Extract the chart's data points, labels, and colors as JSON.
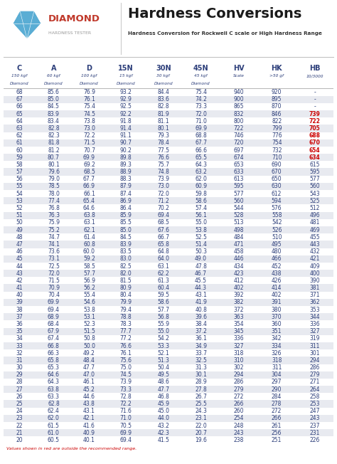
{
  "title": "Hardness Conversions",
  "subtitle": "Hardness Conversion for Rockwell C scale or High Hardness Range",
  "columns": [
    "C",
    "A",
    "D",
    "15N",
    "30N",
    "45N",
    "HV",
    "HK",
    "HB"
  ],
  "col_sub1": [
    "150 kgf",
    "60 kgf",
    "100 kgf",
    "15 kgf",
    "30 kgf",
    "45 kgf",
    "Scale",
    ">50 gf",
    "10/3000"
  ],
  "col_sub2": [
    "Diamond",
    "Diamond",
    "Diamond",
    "Diamond",
    "Diamond",
    "Diamond",
    "",
    "",
    ""
  ],
  "footer": "Values shown in red are outside the recommended range.",
  "rows": [
    [
      68,
      85.6,
      76.9,
      93.2,
      84.4,
      75.4,
      940,
      920,
      "-"
    ],
    [
      67,
      85.0,
      76.1,
      92.9,
      83.6,
      74.2,
      900,
      895,
      "-"
    ],
    [
      66,
      84.5,
      75.4,
      92.5,
      82.8,
      73.3,
      865,
      870,
      "-"
    ],
    [
      65,
      83.9,
      74.5,
      92.2,
      81.9,
      72.0,
      832,
      846,
      "739"
    ],
    [
      64,
      83.4,
      73.8,
      91.8,
      81.1,
      71.0,
      800,
      822,
      "722"
    ],
    [
      63,
      82.8,
      73.0,
      91.4,
      80.1,
      69.9,
      722,
      799,
      "705"
    ],
    [
      62,
      82.3,
      72.2,
      91.1,
      79.3,
      68.8,
      746,
      776,
      "688"
    ],
    [
      61,
      81.8,
      71.5,
      90.7,
      78.4,
      67.7,
      720,
      754,
      "670"
    ],
    [
      60,
      81.2,
      70.7,
      90.2,
      77.5,
      66.6,
      697,
      732,
      "654"
    ],
    [
      59,
      80.7,
      69.9,
      89.8,
      76.6,
      65.5,
      674,
      710,
      "634"
    ],
    [
      58,
      80.1,
      69.2,
      89.3,
      75.7,
      64.3,
      653,
      690,
      615
    ],
    [
      57,
      79.6,
      68.5,
      88.9,
      74.8,
      63.2,
      633,
      670,
      595
    ],
    [
      56,
      79.0,
      67.7,
      88.3,
      73.9,
      62.0,
      613,
      650,
      577
    ],
    [
      55,
      78.5,
      66.9,
      87.9,
      73.0,
      60.9,
      595,
      630,
      560
    ],
    [
      54,
      78.0,
      66.1,
      87.4,
      72.0,
      59.8,
      577,
      612,
      543
    ],
    [
      53,
      77.4,
      65.4,
      86.9,
      71.2,
      58.6,
      560,
      594,
      525
    ],
    [
      52,
      76.8,
      64.6,
      86.4,
      70.2,
      57.4,
      544,
      576,
      512
    ],
    [
      51,
      76.3,
      63.8,
      85.9,
      69.4,
      56.1,
      528,
      558,
      496
    ],
    [
      50,
      75.9,
      63.1,
      85.5,
      68.5,
      55.0,
      513,
      542,
      481
    ],
    [
      49,
      75.2,
      62.1,
      85.0,
      67.6,
      53.8,
      498,
      526,
      469
    ],
    [
      48,
      74.7,
      61.4,
      84.5,
      66.7,
      52.5,
      484,
      510,
      455
    ],
    [
      47,
      74.1,
      60.8,
      83.9,
      65.8,
      51.4,
      471,
      495,
      443
    ],
    [
      46,
      73.6,
      60.0,
      83.5,
      64.8,
      50.3,
      458,
      480,
      432
    ],
    [
      45,
      73.1,
      59.2,
      83.0,
      64.0,
      49.0,
      446,
      466,
      421
    ],
    [
      44,
      72.5,
      58.5,
      82.5,
      63.1,
      47.8,
      434,
      452,
      409
    ],
    [
      43,
      72.0,
      57.7,
      82.0,
      62.2,
      46.7,
      423,
      438,
      400
    ],
    [
      42,
      71.5,
      56.9,
      81.5,
      61.3,
      45.5,
      412,
      426,
      390
    ],
    [
      41,
      70.9,
      56.2,
      80.9,
      60.4,
      44.3,
      402,
      414,
      381
    ],
    [
      40,
      70.4,
      55.4,
      80.4,
      59.5,
      43.1,
      392,
      402,
      371
    ],
    [
      39,
      69.9,
      54.6,
      79.9,
      58.6,
      41.9,
      382,
      391,
      362
    ],
    [
      38,
      69.4,
      53.8,
      79.4,
      57.7,
      40.8,
      372,
      380,
      353
    ],
    [
      37,
      68.9,
      53.1,
      78.8,
      56.8,
      39.6,
      363,
      370,
      344
    ],
    [
      36,
      68.4,
      52.3,
      78.3,
      55.9,
      38.4,
      354,
      360,
      336
    ],
    [
      35,
      67.9,
      51.5,
      77.7,
      55.0,
      37.2,
      345,
      351,
      327
    ],
    [
      34,
      67.4,
      50.8,
      77.2,
      54.2,
      36.1,
      336,
      342,
      319
    ],
    [
      33,
      66.8,
      50.0,
      76.6,
      53.3,
      34.9,
      327,
      334,
      311
    ],
    [
      32,
      66.3,
      49.2,
      76.1,
      52.1,
      33.7,
      318,
      326,
      301
    ],
    [
      31,
      65.8,
      48.4,
      75.6,
      51.3,
      32.5,
      310,
      318,
      294
    ],
    [
      30,
      65.3,
      47.7,
      75.0,
      50.4,
      31.3,
      302,
      311,
      286
    ],
    [
      29,
      64.6,
      47.0,
      74.5,
      49.5,
      30.1,
      294,
      304,
      279
    ],
    [
      28,
      64.3,
      46.1,
      73.9,
      48.6,
      28.9,
      286,
      297,
      271
    ],
    [
      27,
      63.8,
      45.2,
      73.3,
      47.7,
      27.8,
      279,
      290,
      264
    ],
    [
      26,
      63.3,
      44.6,
      72.8,
      46.8,
      26.7,
      272,
      284,
      258
    ],
    [
      25,
      62.8,
      43.8,
      72.2,
      45.9,
      25.5,
      266,
      278,
      253
    ],
    [
      24,
      62.4,
      43.1,
      71.6,
      45.0,
      24.3,
      260,
      272,
      247
    ],
    [
      23,
      62.0,
      42.1,
      71.0,
      44.0,
      23.1,
      254,
      266,
      243
    ],
    [
      22,
      61.5,
      41.6,
      70.5,
      43.2,
      22.0,
      248,
      261,
      237
    ],
    [
      21,
      61.0,
      40.9,
      69.9,
      42.3,
      20.7,
      243,
      256,
      231
    ],
    [
      20,
      60.5,
      40.1,
      69.4,
      41.5,
      19.6,
      238,
      251,
      226
    ]
  ],
  "red_hb_c_vals": [
    65,
    64,
    63,
    62,
    61,
    60,
    59
  ],
  "alt_row_color": "#e8eaf0",
  "normal_row_color": "#ffffff",
  "text_color": "#2c3e7a",
  "red_color": "#cc0000",
  "logo_diamond_color": "#5aadd4",
  "logo_text_color": "#c0392b",
  "logo_subtext_color": "#999999",
  "title_color": "#1a1a1a",
  "subtitle_color": "#333333"
}
